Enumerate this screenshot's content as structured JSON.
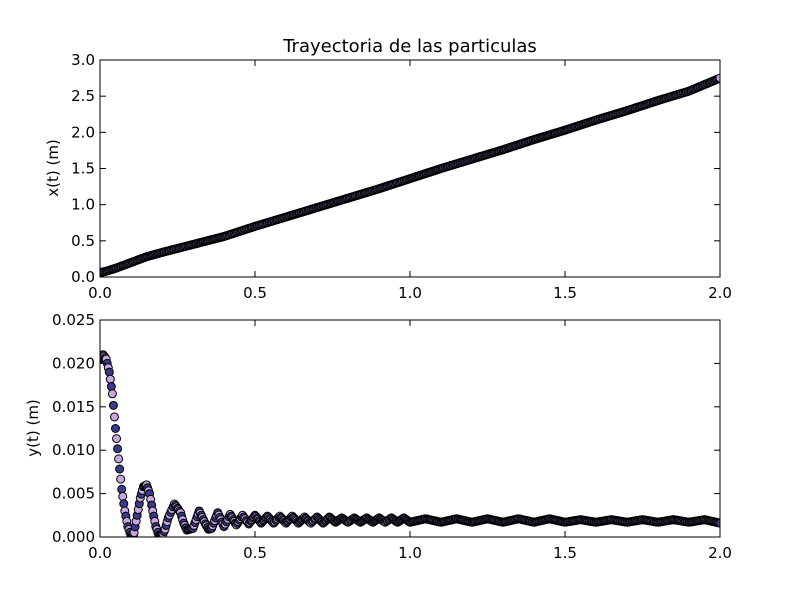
{
  "colors": {
    "background": "#ffffff",
    "axes": "#000000",
    "marker_face_a": "#c9a6e0",
    "marker_face_b": "#3a3a8c",
    "marker_edge": "#000000"
  },
  "chart_data": [
    {
      "type": "scatter",
      "title": "Trayectoria de las particulas",
      "xlabel": "",
      "ylabel": "x(t) (m)",
      "xlim": [
        0,
        2
      ],
      "ylim": [
        0,
        3
      ],
      "xticks": [
        0.0,
        0.5,
        1.0,
        1.5,
        2.0
      ],
      "yticks": [
        0.0,
        0.5,
        1.0,
        1.5,
        2.0,
        2.5,
        3.0
      ],
      "xtick_labels": [
        "0.0",
        "0.5",
        "1.0",
        "1.5",
        "2.0"
      ],
      "ytick_labels": [
        "0.0",
        "0.5",
        "1.0",
        "1.5",
        "2.0",
        "2.5",
        "3.0"
      ],
      "grid": false,
      "series": [
        {
          "x": [
            0.0,
            0.02,
            0.05,
            0.1,
            0.15,
            0.2,
            0.3,
            0.4,
            0.5,
            0.6,
            0.7,
            0.8,
            0.9,
            1.0,
            1.1,
            1.2,
            1.3,
            1.4,
            1.5,
            1.6,
            1.7,
            1.8,
            1.9,
            2.0
          ],
          "y": [
            0.06,
            0.08,
            0.12,
            0.2,
            0.28,
            0.34,
            0.45,
            0.56,
            0.7,
            0.83,
            0.96,
            1.09,
            1.22,
            1.36,
            1.5,
            1.63,
            1.76,
            1.9,
            2.03,
            2.17,
            2.3,
            2.44,
            2.57,
            2.75
          ]
        }
      ]
    },
    {
      "type": "scatter",
      "title": "",
      "xlabel": "",
      "ylabel": "y(t) (m)",
      "xlim": [
        0,
        2
      ],
      "ylim": [
        0,
        0.025
      ],
      "xticks": [
        0.0,
        0.5,
        1.0,
        1.5,
        2.0
      ],
      "yticks": [
        0.0,
        0.005,
        0.01,
        0.015,
        0.02,
        0.025
      ],
      "xtick_labels": [
        "0.0",
        "0.5",
        "1.0",
        "1.5",
        "2.0"
      ],
      "ytick_labels": [
        "0.000",
        "0.005",
        "0.010",
        "0.015",
        "0.020",
        "0.025"
      ],
      "grid": false,
      "series": [
        {
          "x": [
            0.0,
            0.01,
            0.02,
            0.03,
            0.04,
            0.05,
            0.06,
            0.07,
            0.08,
            0.09,
            0.1,
            0.105,
            0.11,
            0.12,
            0.13,
            0.14,
            0.15,
            0.16,
            0.17,
            0.18,
            0.19,
            0.2,
            0.21,
            0.22,
            0.24,
            0.26,
            0.27,
            0.28,
            0.3,
            0.32,
            0.34,
            0.35,
            0.36,
            0.38,
            0.4,
            0.42,
            0.44,
            0.46,
            0.48,
            0.5,
            0.52,
            0.54,
            0.56,
            0.58,
            0.6,
            0.62,
            0.64,
            0.66,
            0.68,
            0.7,
            0.72,
            0.74,
            0.76,
            0.78,
            0.8,
            0.82,
            0.84,
            0.86,
            0.88,
            0.9,
            0.92,
            0.94,
            0.96,
            0.98,
            1.0,
            1.05,
            1.1,
            1.15,
            1.2,
            1.25,
            1.3,
            1.35,
            1.4,
            1.45,
            1.5,
            1.55,
            1.6,
            1.65,
            1.7,
            1.75,
            1.8,
            1.85,
            1.9,
            1.95,
            2.0
          ],
          "y": [
            0.0205,
            0.021,
            0.0205,
            0.019,
            0.0165,
            0.0125,
            0.009,
            0.0055,
            0.003,
            0.0012,
            0.0002,
            0.0,
            0.0005,
            0.0025,
            0.0045,
            0.0058,
            0.006,
            0.005,
            0.003,
            0.0012,
            0.0002,
            0.0001,
            0.0009,
            0.0022,
            0.0038,
            0.0028,
            0.0016,
            0.0008,
            0.001,
            0.003,
            0.0015,
            0.0009,
            0.001,
            0.0028,
            0.0012,
            0.0026,
            0.0014,
            0.0025,
            0.0015,
            0.0025,
            0.0016,
            0.0024,
            0.0016,
            0.0024,
            0.0016,
            0.0024,
            0.0016,
            0.0023,
            0.0016,
            0.0023,
            0.0016,
            0.0023,
            0.0017,
            0.0022,
            0.0017,
            0.0022,
            0.0017,
            0.0022,
            0.0017,
            0.0022,
            0.0017,
            0.0022,
            0.0017,
            0.0022,
            0.0017,
            0.0021,
            0.0017,
            0.0021,
            0.0017,
            0.0021,
            0.0017,
            0.0021,
            0.0017,
            0.0021,
            0.0017,
            0.002,
            0.0017,
            0.002,
            0.0017,
            0.002,
            0.0017,
            0.002,
            0.0017,
            0.002,
            0.0016
          ]
        }
      ]
    }
  ]
}
